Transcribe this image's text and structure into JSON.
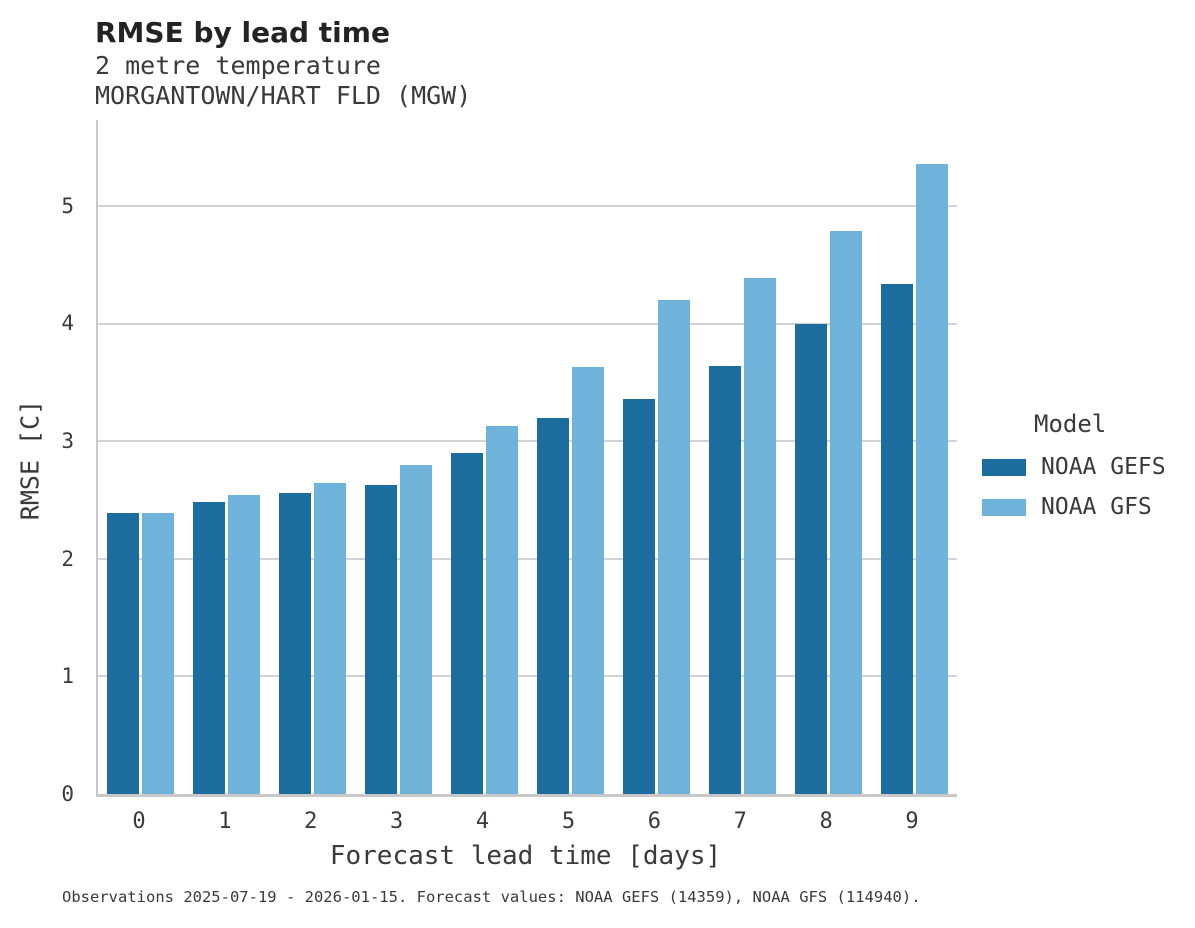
{
  "header": {
    "title": "RMSE by lead time",
    "subtitle1": "2 metre temperature",
    "subtitle2": "MORGANTOWN/HART FLD (MGW)"
  },
  "chart_data": {
    "type": "bar",
    "title": "RMSE by lead time",
    "subtitle": [
      "2 metre temperature",
      "MORGANTOWN/HART FLD (MGW)"
    ],
    "categories": [
      "0",
      "1",
      "2",
      "3",
      "4",
      "5",
      "6",
      "7",
      "8",
      "9"
    ],
    "series": [
      {
        "name": "NOAA GEFS",
        "color": "#1b6d9e",
        "values": [
          2.39,
          2.48,
          2.56,
          2.63,
          2.9,
          3.2,
          3.36,
          3.64,
          4.0,
          4.34
        ]
      },
      {
        "name": "NOAA GFS",
        "color": "#6fb2da",
        "values": [
          2.39,
          2.54,
          2.64,
          2.8,
          3.13,
          3.63,
          4.2,
          4.39,
          4.79,
          5.36
        ]
      }
    ],
    "xlabel": "Forecast lead time [days]",
    "ylabel": "RMSE [C]",
    "ylim": [
      0,
      5.73
    ],
    "yticks": [
      0,
      1,
      2,
      3,
      4,
      5
    ],
    "grid": "horizontal",
    "legend_title": "Model",
    "legend_position": "right"
  },
  "colors": {
    "axis": "#c8c8c8",
    "gridline": "#d2d2d2",
    "background": "#ffffff"
  },
  "footer": {
    "text": "Observations 2025-07-19 - 2026-01-15. Forecast values: NOAA GEFS (14359), NOAA GFS (114940)."
  }
}
